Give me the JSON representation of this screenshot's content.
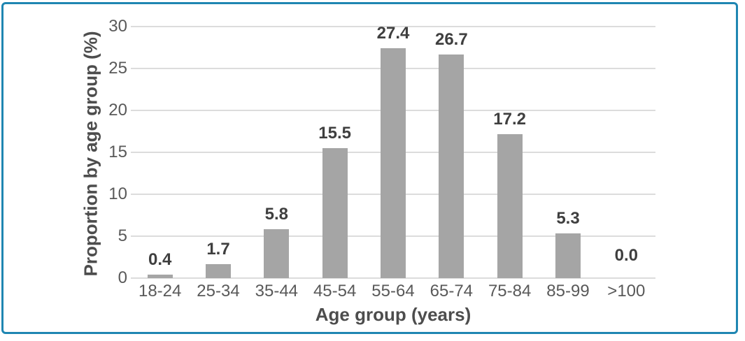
{
  "chart_data": {
    "type": "bar",
    "title": "",
    "categories": [
      "18-24",
      "25-34",
      "35-44",
      "45-54",
      "55-64",
      "65-74",
      "75-84",
      "85-99",
      ">100"
    ],
    "values": [
      0.4,
      1.7,
      5.8,
      15.5,
      27.4,
      26.7,
      17.2,
      5.3,
      0.0
    ],
    "data_labels": [
      "0.4",
      "1.7",
      "5.8",
      "15.5",
      "27.4",
      "26.7",
      "17.2",
      "5.3",
      "0.0"
    ],
    "xlabel": "Age group (years)",
    "ylabel": "Proportion by age group (%)",
    "ylim": [
      0,
      30
    ],
    "yticks": [
      0,
      5,
      10,
      15,
      20,
      25,
      30
    ],
    "grid": true,
    "legend": "none",
    "colors": {
      "bar": "#a5a5a5",
      "gridline": "#dcdcdc",
      "tick_label": "#595959",
      "axis_title": "#4d4d4d",
      "data_label": "#3f3f3f",
      "frame_border": "#1f86b2",
      "background": "#ffffff"
    }
  }
}
